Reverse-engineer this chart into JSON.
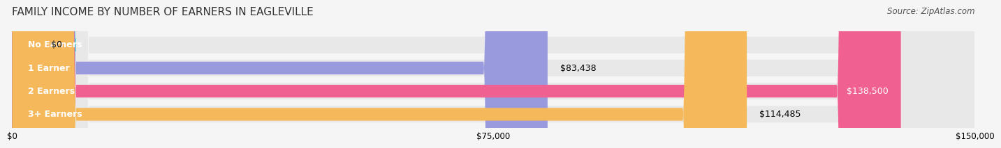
{
  "title": "FAMILY INCOME BY NUMBER OF EARNERS IN EAGLEVILLE",
  "source": "Source: ZipAtlas.com",
  "categories": [
    "No Earners",
    "1 Earner",
    "2 Earners",
    "3+ Earners"
  ],
  "values": [
    0,
    83438,
    138500,
    114485
  ],
  "value_labels": [
    "$0",
    "$83,438",
    "$138,500",
    "$114,485"
  ],
  "bar_colors": [
    "#5ecfcf",
    "#9999dd",
    "#f06090",
    "#f5b85a"
  ],
  "bar_track_color": "#e8e8e8",
  "background_color": "#f5f5f5",
  "xlim": [
    0,
    150000
  ],
  "xticks": [
    0,
    75000,
    150000
  ],
  "xtick_labels": [
    "$0",
    "$75,000",
    "$150,000"
  ],
  "title_fontsize": 11,
  "source_fontsize": 8.5,
  "label_fontsize": 9,
  "value_fontsize": 9
}
